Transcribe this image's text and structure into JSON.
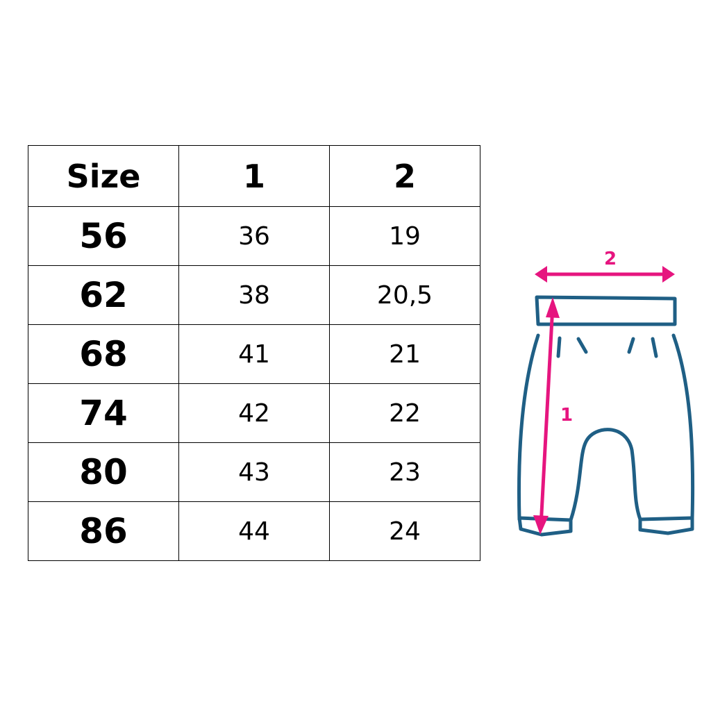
{
  "table": {
    "headers": [
      "Size",
      "1",
      "2"
    ],
    "rows": [
      [
        "56",
        "36",
        "19"
      ],
      [
        "62",
        "38",
        "20,5"
      ],
      [
        "68",
        "41",
        "21"
      ],
      [
        "74",
        "42",
        "22"
      ],
      [
        "80",
        "43",
        "23"
      ],
      [
        "86",
        "44",
        "24"
      ]
    ]
  },
  "diagram": {
    "label_length": "1",
    "label_width": "2",
    "colors": {
      "outline": "#1f5f85",
      "arrow": "#e6157f"
    }
  }
}
